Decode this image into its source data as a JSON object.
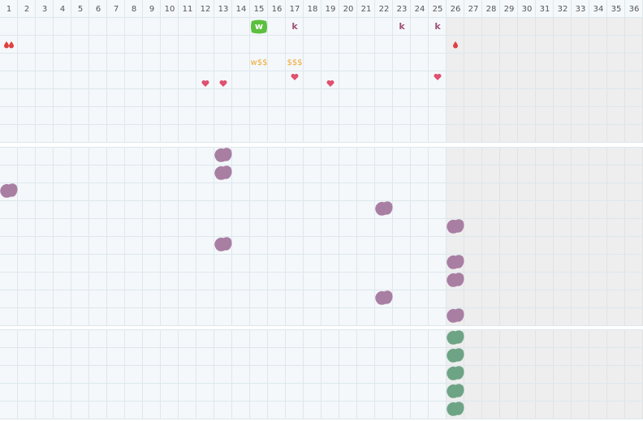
{
  "columns": [
    1,
    2,
    3,
    4,
    5,
    6,
    7,
    8,
    9,
    10,
    11,
    12,
    13,
    14,
    15,
    16,
    17,
    18,
    19,
    20,
    21,
    22,
    23,
    24,
    25,
    26,
    27,
    28,
    29,
    30,
    31,
    32,
    33,
    34,
    35,
    36
  ],
  "labels": [
    "w",
    "k",
    "k",
    "k",
    "w$$",
    "$$$"
  ]
}
